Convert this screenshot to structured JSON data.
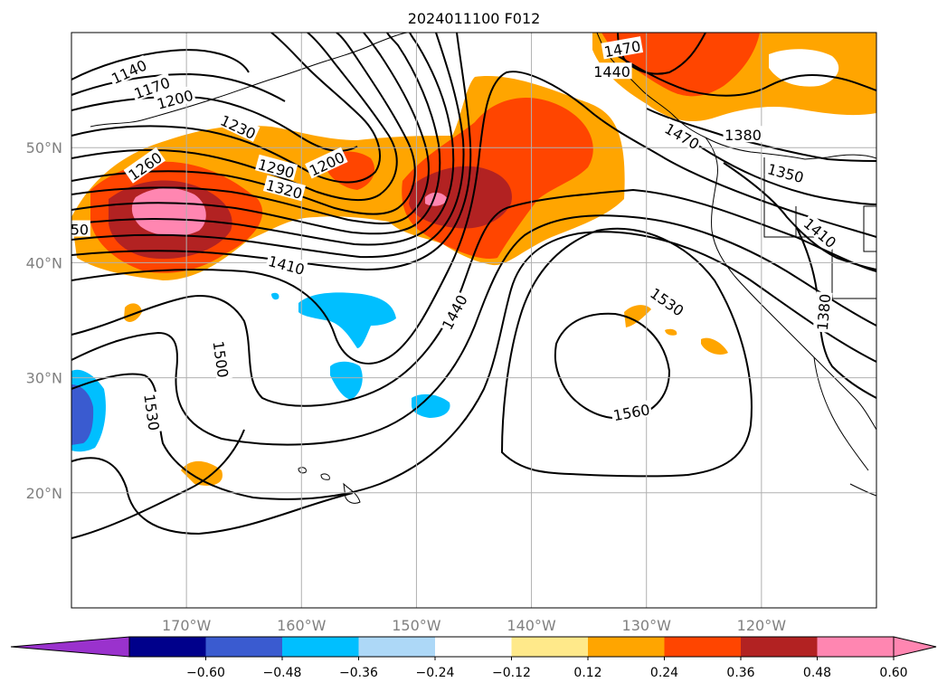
{
  "title": "2024011100 F012",
  "map": {
    "extent": {
      "lon_min": -180,
      "lon_max": -110,
      "lat_min": 10,
      "lat_max": 60
    },
    "lat_ticks": [
      {
        "lat": 50,
        "label": "50°N"
      },
      {
        "lat": 40,
        "label": "40°N"
      },
      {
        "lat": 30,
        "label": "30°N"
      },
      {
        "lat": 20,
        "label": "20°N"
      }
    ],
    "lon_ticks": [
      {
        "lon": -170,
        "label": "170°W"
      },
      {
        "lon": -160,
        "label": "160°W"
      },
      {
        "lon": -150,
        "label": "150°W"
      },
      {
        "lon": -140,
        "label": "140°W"
      },
      {
        "lon": -130,
        "label": "130°W"
      },
      {
        "lon": -120,
        "label": "120°W"
      }
    ],
    "gridlines": true,
    "contour_labels": [
      {
        "text": "1140",
        "lon": -175,
        "lat": 56.6,
        "rot": -25
      },
      {
        "text": "1170",
        "lon": -173,
        "lat": 55.2,
        "rot": -20
      },
      {
        "text": "1200",
        "lon": -171,
        "lat": 54.2,
        "rot": -15
      },
      {
        "text": "1230",
        "lon": -165.5,
        "lat": 51.8,
        "rot": 25
      },
      {
        "text": "1260",
        "lon": -173.6,
        "lat": 48.4,
        "rot": -35
      },
      {
        "text": "1290",
        "lon": -162.2,
        "lat": 48.2,
        "rot": 15
      },
      {
        "text": "1320",
        "lon": -161.5,
        "lat": 46.4,
        "rot": 15
      },
      {
        "text": "1200",
        "lon": -157.8,
        "lat": 48.6,
        "rot": -25
      },
      {
        "text": "1410",
        "lon": -161.3,
        "lat": 39.8,
        "rot": 15
      },
      {
        "text": "50",
        "lon": -179.3,
        "lat": 42.9,
        "rot": 0
      },
      {
        "text": "1470",
        "lon": -126.9,
        "lat": 51.0,
        "rot": 30
      },
      {
        "text": "1470",
        "lon": -132.1,
        "lat": 58.6,
        "rot": -10
      },
      {
        "text": "1440",
        "lon": -133.0,
        "lat": 56.6,
        "rot": 0
      },
      {
        "text": "1380",
        "lon": -121.6,
        "lat": 51.1,
        "rot": 0
      },
      {
        "text": "1350",
        "lon": -117.9,
        "lat": 47.8,
        "rot": 15
      },
      {
        "text": "1410",
        "lon": -114.9,
        "lat": 42.6,
        "rot": 40
      },
      {
        "text": "1380",
        "lon": -114.6,
        "lat": 35.7,
        "rot": -85
      },
      {
        "text": "1440",
        "lon": -146.7,
        "lat": 35.7,
        "rot": -62
      },
      {
        "text": "1530",
        "lon": -128.2,
        "lat": 36.6,
        "rot": 35
      },
      {
        "text": "1500",
        "lon": -167.0,
        "lat": 31.6,
        "rot": 82
      },
      {
        "text": "1530",
        "lon": -173.0,
        "lat": 27.0,
        "rot": 82
      },
      {
        "text": "1560",
        "lon": -131.3,
        "lat": 27.0,
        "rot": -10
      }
    ]
  },
  "colorbar": {
    "ticks": [
      "−0.60",
      "−0.48",
      "−0.36",
      "−0.24",
      "−0.12",
      "0.12",
      "0.24",
      "0.36",
      "0.48",
      "0.60"
    ],
    "colors": [
      "#9a32cd",
      "#00008b",
      "#3a5bd0",
      "#00bfff",
      "#add8f7",
      "#ffffff",
      "#ffe98a",
      "#ffa500",
      "#ff4500",
      "#b22222",
      "#ff86b1",
      "#ff86b1"
    ],
    "extend": "both"
  }
}
